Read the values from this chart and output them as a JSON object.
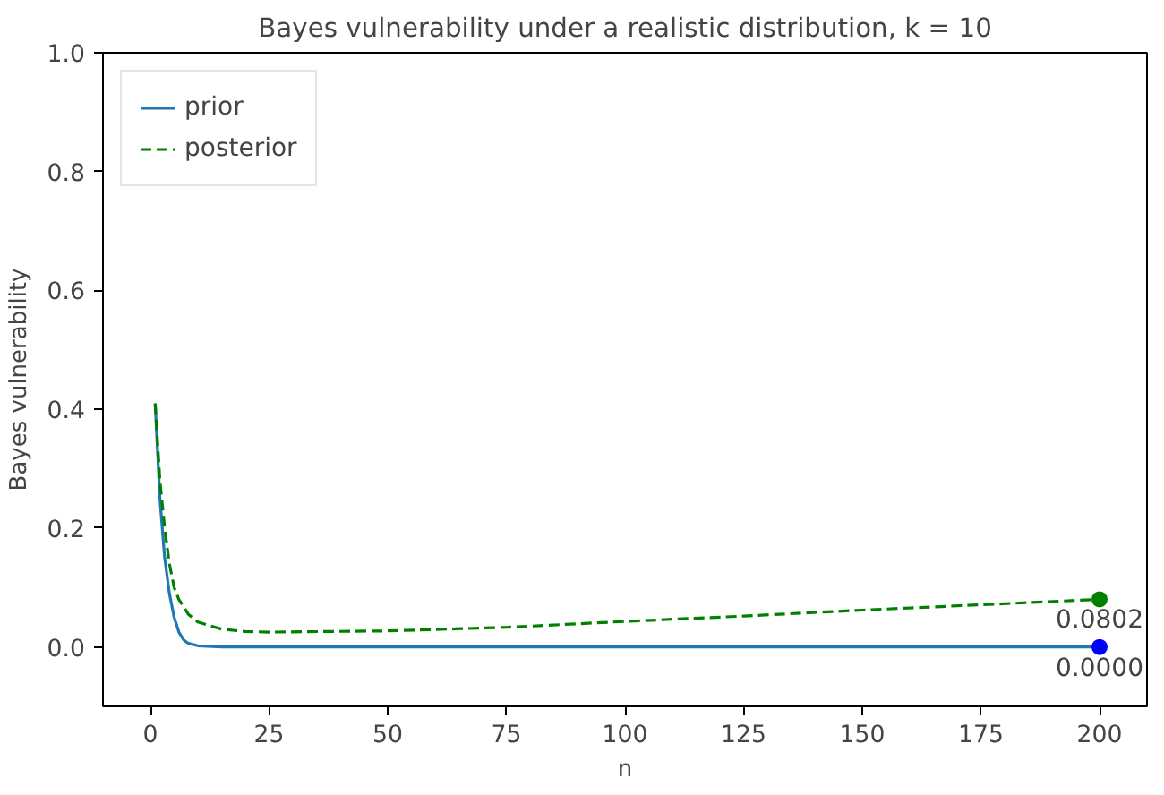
{
  "chart_data": {
    "type": "line",
    "title": "Bayes vulnerability under a realistic distribution, k = 10",
    "xlabel": "n",
    "ylabel": "Bayes vulnerability",
    "xlim": [
      -10,
      210
    ],
    "ylim": [
      -0.1,
      1.0
    ],
    "xticks": [
      0,
      25,
      50,
      75,
      100,
      125,
      150,
      175,
      200
    ],
    "yticks": [
      {
        "value": 0,
        "label": "0.0"
      },
      {
        "value": 0.2,
        "label": "0.2"
      },
      {
        "value": 0.4,
        "label": "0.4"
      },
      {
        "value": 0.6,
        "label": "0.6"
      },
      {
        "value": 0.8,
        "label": "0.8"
      },
      {
        "value": 1,
        "label": "1.0"
      }
    ],
    "grid": false,
    "legend": "top left",
    "series": [
      {
        "name": "prior",
        "color": "#1f77b4",
        "line_style": "solid",
        "x": [
          1,
          2,
          3,
          4,
          5,
          6,
          7,
          8,
          10,
          15,
          200
        ],
        "values": [
          0.41,
          0.25,
          0.15,
          0.09,
          0.05,
          0.025,
          0.012,
          0.006,
          0.002,
          0,
          0
        ]
      },
      {
        "name": "posterior",
        "color": "#008000",
        "line_style": "dashed",
        "x": [
          1,
          2,
          3,
          4,
          5,
          6,
          8,
          10,
          15,
          20,
          25,
          50,
          75,
          100,
          125,
          150,
          175,
          200
        ],
        "values": [
          0.41,
          0.28,
          0.2,
          0.14,
          0.1,
          0.08,
          0.055,
          0.042,
          0.03,
          0.026,
          0.025,
          0.027,
          0.033,
          0.043,
          0.052,
          0.062,
          0.071,
          0.0802
        ]
      },
      {
        "type": "scatter",
        "color": "#0000ff",
        "marker": "circle",
        "x": [
          200
        ],
        "values": [
          0.0
        ]
      },
      {
        "type": "scatter",
        "color": "#008000",
        "marker": "circle",
        "x": [
          200
        ],
        "values": [
          0.0802
        ]
      }
    ],
    "annotations": [
      {
        "text": "0.0802",
        "x": 200,
        "y": 0.0802
      },
      {
        "text": "0.0000",
        "x": 200,
        "y": 0.0
      }
    ]
  }
}
